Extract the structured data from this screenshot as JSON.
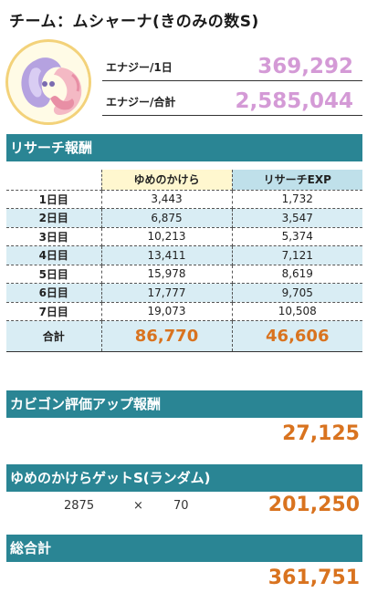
{
  "title": "チーム：ムシャーナ(きのみの数S)",
  "energy": {
    "per_day_label": "エナジー/1日",
    "per_day_value": "369,292",
    "total_label": "エナジー/合計",
    "total_value": "2,585,044"
  },
  "research": {
    "section_title": "リサーチ報酬",
    "headers": [
      "",
      "ゆめのかけら",
      "リサーチEXP"
    ],
    "rows": [
      {
        "day": "1日目",
        "shards": "3,443",
        "exp": "1,732"
      },
      {
        "day": "2日目",
        "shards": "6,875",
        "exp": "3,547"
      },
      {
        "day": "3日目",
        "shards": "10,213",
        "exp": "5,374"
      },
      {
        "day": "4日目",
        "shards": "13,411",
        "exp": "7,121"
      },
      {
        "day": "5日目",
        "shards": "15,978",
        "exp": "8,619"
      },
      {
        "day": "6日目",
        "shards": "17,777",
        "exp": "9,705"
      },
      {
        "day": "7日目",
        "shards": "19,073",
        "exp": "10,508"
      }
    ],
    "total": {
      "label": "合計",
      "shards": "86,770",
      "exp": "46,606"
    }
  },
  "snorlax": {
    "section_title": "カビゴン評価アップ報酬",
    "value": "27,125"
  },
  "dream_shard_get": {
    "section_title": "ゆめのかけらゲットS(ランダム)",
    "operand1": "2875",
    "operator": "×",
    "operand2": "70",
    "value": "201,250"
  },
  "grand_total": {
    "section_title": "総合計",
    "value": "361,751"
  },
  "colors": {
    "section_bg": "#2a8594",
    "energy_value": "#d49ad6",
    "accent_orange": "#d9731f",
    "header_yellow": "#fff7cf",
    "header_blue": "#bfe0ea",
    "row_alt": "#d9edf4"
  }
}
